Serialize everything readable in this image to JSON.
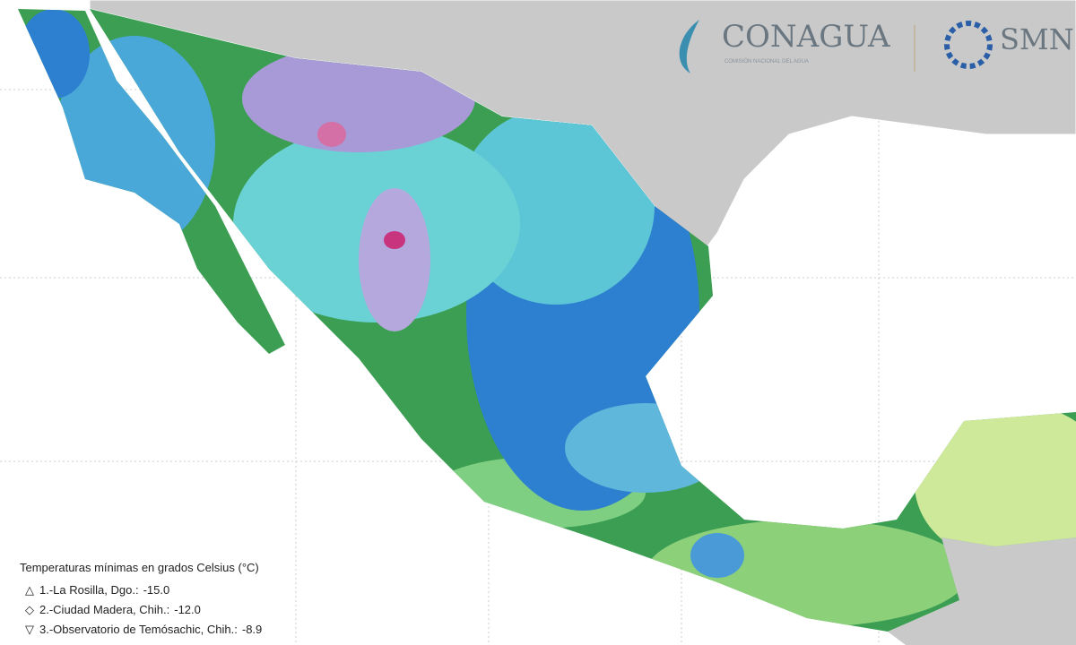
{
  "logos": {
    "conagua": {
      "name": "CONAGUA",
      "subtitle": "COMISIÓN NACIONAL DEL AGUA"
    },
    "smn": {
      "name": "SMN"
    }
  },
  "legend": {
    "title": "Temperaturas mínimas en grados Celsius (°C)",
    "entries": [
      {
        "symbol": "△",
        "station": "1.-La Rosilla, Dgo.:",
        "value": "-15.0"
      },
      {
        "symbol": "◇",
        "station": "2.-Ciudad Madera, Chih.:",
        "value": "-12.0"
      },
      {
        "symbol": "▽",
        "station": "3.-Observatorio de Temósachic, Chih.:",
        "value": "-8.9"
      }
    ]
  }
}
